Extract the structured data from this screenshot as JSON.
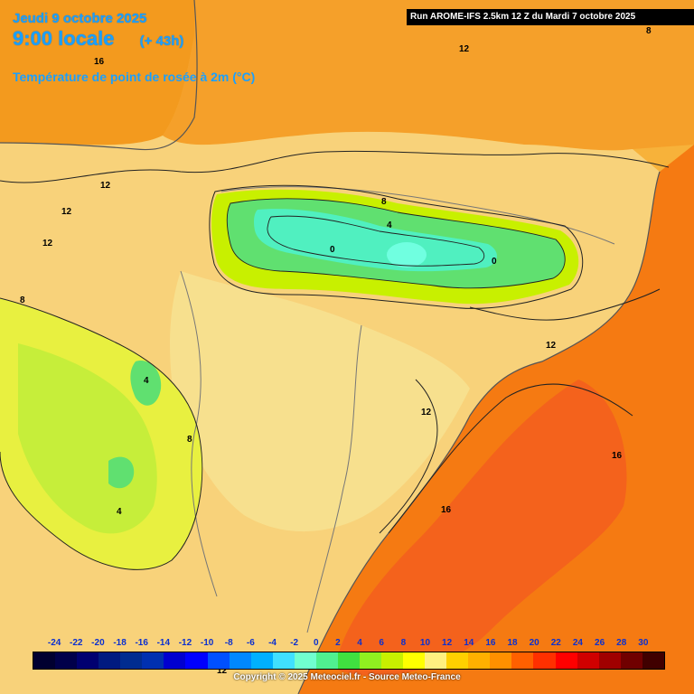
{
  "header": {
    "date": "Jeudi 9 octobre 2025",
    "time": "9:00 locale",
    "lead": "(+ 43h)",
    "variable": "Température de point de rosée à 2m (°C)"
  },
  "run_info": "Run AROME-IFS 2.5km 12 Z du Mardi 7 octobre 2025",
  "colorbar": {
    "ticks": [
      "-24",
      "-22",
      "-20",
      "-18",
      "-16",
      "-14",
      "-12",
      "-10",
      "-8",
      "-6",
      "-4",
      "-2",
      "0",
      "2",
      "4",
      "6",
      "8",
      "10",
      "12",
      "14",
      "16",
      "18",
      "20",
      "22",
      "24",
      "26",
      "28",
      "30"
    ],
    "colors": [
      "#000030",
      "#00004a",
      "#000070",
      "#001a80",
      "#002c90",
      "#0030b0",
      "#0000d0",
      "#0000ff",
      "#0050ff",
      "#0088ff",
      "#00b0ff",
      "#40e0ff",
      "#70ffd0",
      "#50f090",
      "#40e040",
      "#90f020",
      "#c8f000",
      "#ffff00",
      "#fff080",
      "#ffd000",
      "#ffb000",
      "#ff9000",
      "#ff6000",
      "#ff3000",
      "#ff0000",
      "#d00000",
      "#a00000",
      "#700000",
      "#400000"
    ]
  },
  "contour_labels": [
    {
      "text": "16"
    },
    {
      "text": "12"
    },
    {
      "text": "12"
    },
    {
      "text": "12"
    },
    {
      "text": "12"
    },
    {
      "text": "8"
    },
    {
      "text": "8"
    },
    {
      "text": "4"
    },
    {
      "text": "0"
    },
    {
      "text": "0"
    },
    {
      "text": "12"
    },
    {
      "text": "4"
    },
    {
      "text": "8"
    },
    {
      "text": "4"
    },
    {
      "text": "12"
    },
    {
      "text": "16"
    },
    {
      "text": "16"
    },
    {
      "text": "8"
    },
    {
      "text": "12"
    }
  ],
  "copyright": "Copyright © 2025 Meteociel.fr - Source Meteo-France"
}
